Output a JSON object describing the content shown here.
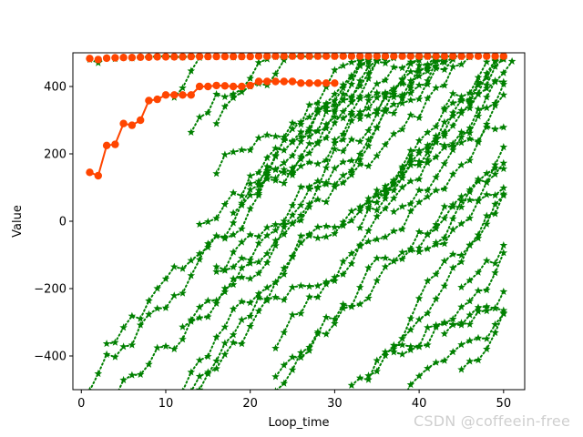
{
  "chart_data": {
    "type": "line",
    "title": "",
    "xlabel": "Loop_time",
    "ylabel": "Value",
    "xlim": [
      -1,
      52.5
    ],
    "ylim": [
      -500,
      500
    ],
    "x_ticks": [
      0,
      10,
      20,
      30,
      40,
      50
    ],
    "y_ticks": [
      -400,
      -200,
      0,
      200,
      400
    ],
    "grid": false,
    "legend": "none",
    "series": [
      {
        "style": "green dotted line with star markers",
        "color": "#008000",
        "x": [
          1,
          2,
          3,
          4,
          5,
          6,
          7,
          8,
          9,
          10,
          11,
          12,
          13,
          14,
          15,
          16,
          17,
          18,
          19,
          20,
          21,
          22,
          23,
          24,
          25,
          26,
          27,
          28,
          29,
          30,
          31,
          32,
          33,
          34,
          35,
          36,
          37,
          38,
          39,
          40,
          41,
          42,
          43,
          44,
          45,
          46,
          47,
          48,
          49,
          50
        ],
        "y": [
          480,
          470,
          485,
          482,
          486,
          484,
          487,
          488,
          489,
          490,
          488,
          487,
          489,
          490,
          488,
          489,
          490,
          487,
          488,
          489,
          490,
          489,
          488,
          487,
          489,
          490,
          488,
          489,
          490,
          489,
          490,
          489,
          488,
          487,
          489,
          490,
          488,
          489,
          490,
          489,
          488,
          487,
          489,
          490,
          488,
          489,
          490,
          489,
          488,
          487
        ]
      },
      {
        "style": "orange-red solid line with circle markers (best so far)",
        "color": "#ff4500",
        "x": [
          1,
          2,
          3,
          4,
          5,
          6,
          7,
          8,
          9,
          10,
          11,
          12,
          13,
          14,
          15,
          16,
          17,
          18,
          19,
          20,
          21,
          22,
          23,
          24,
          25,
          26,
          27,
          28,
          29,
          30
        ],
        "y": [
          145,
          135,
          225,
          228,
          290,
          285,
          300,
          358,
          362,
          375,
          375,
          375,
          375,
          400,
          400,
          403,
          402,
          400,
          400,
          403,
          415,
          415,
          415,
          415,
          415,
          410,
          410,
          410,
          410,
          410
        ]
      },
      {
        "style": "orange-red circle markers along top",
        "color": "#ff4500",
        "x": [
          1,
          2,
          3,
          4,
          5,
          6,
          7,
          8,
          9,
          10,
          11,
          12,
          13,
          14,
          15,
          16,
          17,
          18,
          19,
          20,
          21,
          22,
          23,
          24,
          25,
          26,
          27,
          28,
          29,
          30,
          31,
          32,
          33,
          34,
          35,
          36,
          37,
          38,
          39,
          40,
          41,
          42,
          43,
          44,
          45,
          46,
          47,
          48,
          49,
          50
        ],
        "y": [
          483,
          480,
          484,
          485,
          486,
          486,
          487,
          487,
          488,
          488,
          488,
          488,
          489,
          489,
          489,
          489,
          489,
          489,
          489,
          489,
          490,
          490,
          490,
          490,
          490,
          490,
          490,
          490,
          490,
          490,
          490,
          490,
          490,
          490,
          490,
          490,
          490,
          490,
          490,
          490,
          490,
          490,
          490,
          490,
          490,
          490,
          490,
          490,
          490,
          490
        ]
      }
    ],
    "particle_seed": 7,
    "particle_count": 40,
    "particle_color": "#008000"
  },
  "watermark": "CSDN @coffeein-free"
}
